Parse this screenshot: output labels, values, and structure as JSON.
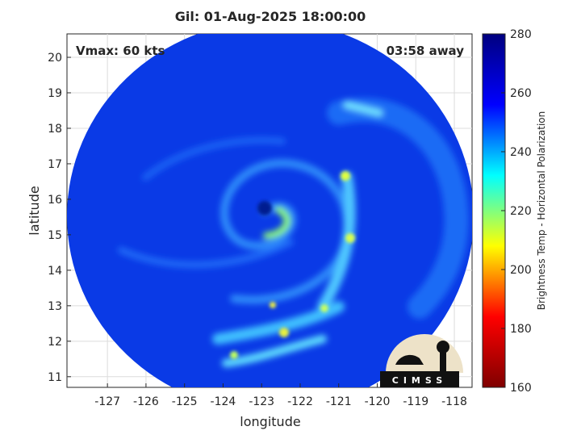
{
  "map": {
    "title": "Gil: 01-Aug-2025 18:00:00",
    "annotations": [
      "Vmax: 60 kts",
      "03:58 away"
    ],
    "x_label": "longitude",
    "y_label": "latitude",
    "xlim": [
      -128.05,
      -117.54
    ],
    "ylim": [
      10.7,
      20.66
    ],
    "xticks": [
      -127,
      -126,
      -125,
      -124,
      -123,
      -122,
      -121,
      -120,
      -119,
      -118
    ],
    "yticks": [
      11,
      12,
      13,
      14,
      15,
      16,
      17,
      18,
      19,
      20
    ],
    "grid": true
  },
  "colorbar": {
    "label": "Brightness Temp - Horizontal Polarization",
    "lim": [
      160,
      280
    ],
    "ticks": [
      160,
      180,
      200,
      220,
      240,
      260,
      280
    ],
    "colors": [
      "#7f0000",
      "#ff0000",
      "#ffff00",
      "#00ffff",
      "#0000ff",
      "#00007f"
    ]
  },
  "logo": {
    "text": "CIMSS"
  }
}
